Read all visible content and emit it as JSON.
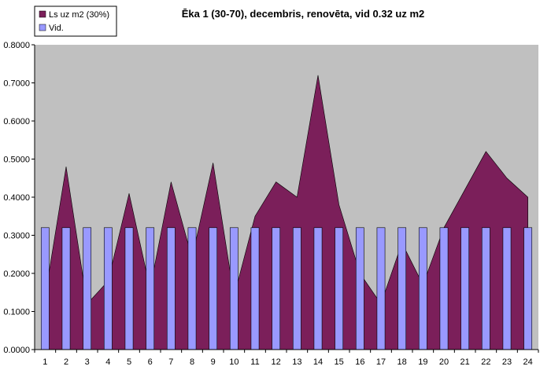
{
  "chart_data": {
    "type": "bar",
    "title": "Ēka 1 (30-70), decembris, renovēta, vid 0.32 uz m2",
    "xlabel": "",
    "ylabel": "",
    "categories": [
      "1",
      "2",
      "3",
      "4",
      "5",
      "6",
      "7",
      "8",
      "9",
      "10",
      "11",
      "12",
      "13",
      "14",
      "15",
      "16",
      "17",
      "18",
      "19",
      "20",
      "21",
      "22",
      "23",
      "24"
    ],
    "ylim": [
      0,
      0.8
    ],
    "yticks": [
      "0.0000",
      "0.1000",
      "0.2000",
      "0.3000",
      "0.4000",
      "0.5000",
      "0.6000",
      "0.7000",
      "0.8000"
    ],
    "grid": false,
    "legend_position": "top-left",
    "plot_background": "#c0c0c0",
    "series": [
      {
        "name": "Ls uz m2 (30%)",
        "type": "area",
        "color": "#7b1f5a",
        "values": [
          0.14,
          0.48,
          0.12,
          0.18,
          0.41,
          0.16,
          0.44,
          0.24,
          0.49,
          0.14,
          0.35,
          0.44,
          0.4,
          0.72,
          0.38,
          0.2,
          0.12,
          0.28,
          0.17,
          0.32,
          0.42,
          0.52,
          0.45,
          0.4
        ]
      },
      {
        "name": "Vid.",
        "type": "bar",
        "color": "#9999ff",
        "values": [
          0.32,
          0.32,
          0.32,
          0.32,
          0.32,
          0.32,
          0.32,
          0.32,
          0.32,
          0.32,
          0.32,
          0.32,
          0.32,
          0.32,
          0.32,
          0.32,
          0.32,
          0.32,
          0.32,
          0.32,
          0.32,
          0.32,
          0.32,
          0.32
        ]
      }
    ]
  }
}
